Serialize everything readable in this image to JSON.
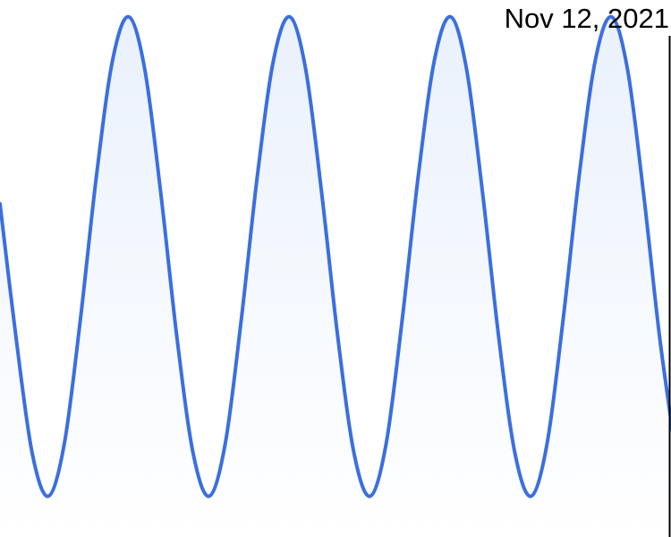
{
  "chart_data": {
    "type": "area",
    "title": "",
    "xlabel": "",
    "ylabel": "",
    "grid": false,
    "legend": "none",
    "cursor": {
      "label": "Nov 12, 2021"
    },
    "series": [
      {
        "color": "#3b6fe0",
        "fill_color": "#eaf1fc",
        "x": [
          0,
          0.5,
          1,
          1.5,
          2,
          2.5,
          3,
          3.5,
          4,
          4.5,
          5,
          5.5,
          6,
          6.5,
          7,
          7.5,
          8,
          8.5,
          9,
          9.5,
          10,
          10.5,
          11,
          11.5,
          12,
          12.5,
          13,
          13.5,
          14,
          14.5,
          15,
          15.5,
          16,
          16.5,
          17,
          17.5,
          18,
          18.5,
          19,
          19.5,
          20,
          20.5,
          21
        ],
        "y": [
          0.61,
          0.33,
          0.09,
          0,
          0.11,
          0.37,
          0.67,
          0.91,
          1,
          0.89,
          0.63,
          0.33,
          0.09,
          0,
          0.11,
          0.37,
          0.67,
          0.91,
          1,
          0.89,
          0.63,
          0.33,
          0.09,
          0,
          0.11,
          0.37,
          0.67,
          0.91,
          1,
          0.89,
          0.63,
          0.33,
          0.09,
          0,
          0.11,
          0.37,
          0.67,
          0.91,
          1,
          0.89,
          0.63,
          0.33,
          0.09
        ]
      }
    ],
    "xlim": [
      0,
      20.85
    ],
    "ylim": [
      -0.085,
      1.035
    ]
  }
}
